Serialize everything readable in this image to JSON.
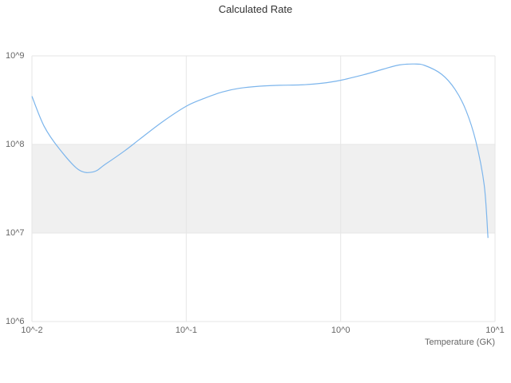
{
  "chart_data": {
    "type": "line",
    "title": "Calculated Rate",
    "xlabel": "Temperature (GK)",
    "ylabel": "",
    "x_scale": "log",
    "y_scale": "log",
    "xlim": [
      0.01,
      10
    ],
    "ylim": [
      1000000.0,
      1000000000.0
    ],
    "grid": true,
    "legend": false,
    "x_ticks": {
      "values": [
        0.01,
        0.1,
        1,
        10
      ],
      "labels": [
        "10^-2",
        "10^-1",
        "10^0",
        "10^1"
      ]
    },
    "y_ticks": {
      "values": [
        1000000.0,
        10000000.0,
        100000000.0,
        1000000000.0
      ],
      "labels": [
        "10^6",
        "10^7",
        "10^8",
        "10^9"
      ]
    },
    "plot_band": {
      "from": 10000000.0,
      "to": 100000000.0,
      "color": "#f0f0f0"
    },
    "series": [
      {
        "name": "Calculated Rate",
        "color": "#7cb5ec",
        "x": [
          0.01,
          0.012,
          0.015,
          0.02,
          0.025,
          0.03,
          0.04,
          0.05,
          0.07,
          0.1,
          0.13,
          0.17,
          0.22,
          0.3,
          0.4,
          0.55,
          0.75,
          1.0,
          1.4,
          1.9,
          2.4,
          3.0,
          3.5,
          4.5,
          5.5,
          6.5,
          7.5,
          8.5,
          9.0
        ],
        "y": [
          350000000.0,
          160000000.0,
          90000000.0,
          52000000.0,
          49000000.0,
          60000000.0,
          85000000.0,
          115000000.0,
          180000000.0,
          270000000.0,
          330000000.0,
          390000000.0,
          430000000.0,
          455000000.0,
          465000000.0,
          470000000.0,
          490000000.0,
          530000000.0,
          610000000.0,
          710000000.0,
          790000000.0,
          810000000.0,
          780000000.0,
          620000000.0,
          420000000.0,
          240000000.0,
          110000000.0,
          35000000.0,
          8800000.0
        ]
      }
    ],
    "colors": {
      "background": "#ffffff",
      "grid": "#e6e6e6",
      "band": "#f0f0f0",
      "line": "#7cb5ec",
      "title": "#333333",
      "labels": "#666666"
    }
  }
}
